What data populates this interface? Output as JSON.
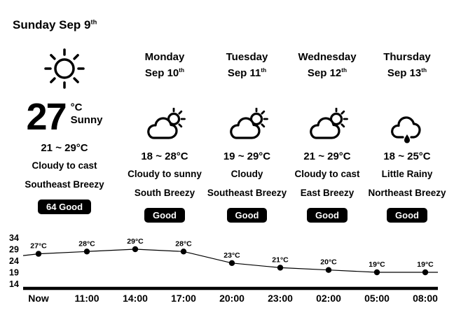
{
  "colors": {
    "background": "#ffffff",
    "text": "#000000",
    "badge_bg": "#000000",
    "badge_text": "#ffffff",
    "line": "#000000"
  },
  "header": {
    "title": "Sunday Sep 9",
    "title_suffix": "th"
  },
  "current": {
    "temperature": "27",
    "unit": "°C",
    "condition": "Sunny",
    "icon": "sun-icon",
    "range": "21 ~ 29°C",
    "sky": "Cloudy to cast",
    "wind": "Southeast Breezy",
    "aqi_value": "64",
    "aqi_label": "Good"
  },
  "days": [
    {
      "name": "Monday",
      "date": "Sep 10",
      "date_suffix": "th",
      "icon": "partly-cloudy-icon",
      "range": "18 ~ 28°C",
      "sky": "Cloudy to sunny",
      "wind": "South Breezy",
      "aqi_label": "Good"
    },
    {
      "name": "Tuesday",
      "date": "Sep 11",
      "date_suffix": "th",
      "icon": "partly-cloudy-icon",
      "range": "19 ~ 29°C",
      "sky": "Cloudy",
      "wind": "Southeast Breezy",
      "aqi_label": "Good"
    },
    {
      "name": "Wednesday",
      "date": "Sep 12",
      "date_suffix": "th",
      "icon": "partly-cloudy-icon",
      "range": "21 ~ 29°C",
      "sky": "Cloudy to cast",
      "wind": "East Breezy",
      "aqi_label": "Good"
    },
    {
      "name": "Thursday",
      "date": "Sep 13",
      "date_suffix": "th",
      "icon": "rainy-icon",
      "range": "18 ~ 25°C",
      "sky": "Little Rainy",
      "wind": "Northeast Breezy",
      "aqi_label": "Good"
    }
  ],
  "chart_data": {
    "type": "line",
    "title": "",
    "xlabel": "",
    "ylabel": "",
    "x": [
      "Now",
      "11:00",
      "14:00",
      "17:00",
      "20:00",
      "23:00",
      "02:00",
      "05:00",
      "08:00"
    ],
    "values": [
      27,
      28,
      29,
      28,
      23,
      21,
      20,
      19,
      19
    ],
    "point_labels": [
      "27°C",
      "28°C",
      "29°C",
      "28°C",
      "23°C",
      "21°C",
      "20°C",
      "19°C",
      "19°C"
    ],
    "y_ticks": [
      34,
      29,
      24,
      19,
      14
    ],
    "ylim": [
      14,
      34
    ],
    "grid": false,
    "legend": false,
    "line_color": "#000000",
    "marker_color": "#000000"
  }
}
